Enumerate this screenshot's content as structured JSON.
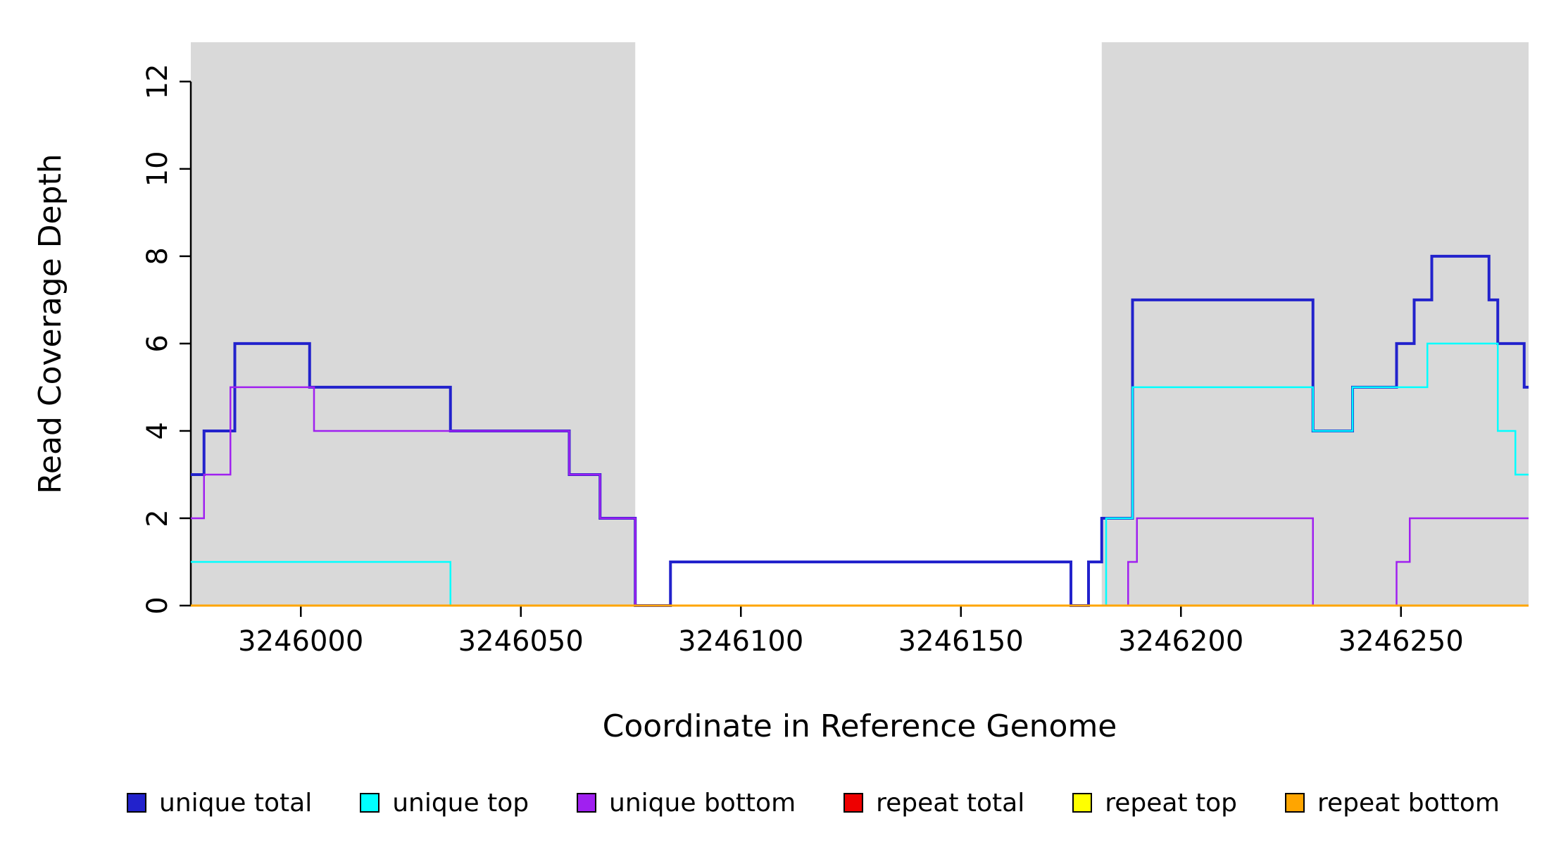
{
  "figure": {
    "background": "#FFFFFF"
  },
  "chart_data": {
    "type": "line",
    "subtype": "step-coverage",
    "title": "",
    "xlabel": "Coordinate in Reference Genome",
    "ylabel": "Read Coverage Depth",
    "xlim": [
      3245975,
      3246279
    ],
    "ylim": [
      0,
      12.9
    ],
    "x_ticks": [
      3246000,
      3246050,
      3246100,
      3246150,
      3246200,
      3246250
    ],
    "y_ticks": [
      0,
      2,
      4,
      6,
      8,
      10,
      12
    ],
    "grid": false,
    "legend_position": "bottom",
    "axis_color": "#000000",
    "shaded_regions": {
      "color": "#D9D9D9",
      "ranges": [
        [
          3245975,
          3246076
        ],
        [
          3246182,
          3246279
        ]
      ]
    },
    "series": [
      {
        "name": "unique total",
        "color": "#2222CC",
        "width": 4,
        "steps": [
          [
            3245975,
            3
          ],
          [
            3245978,
            4
          ],
          [
            3245985,
            6
          ],
          [
            3246002,
            5
          ],
          [
            3246034,
            4
          ],
          [
            3246061,
            3
          ],
          [
            3246068,
            2
          ],
          [
            3246076,
            0
          ],
          [
            3246084,
            1
          ],
          [
            3246175,
            0
          ],
          [
            3246179,
            1
          ],
          [
            3246182,
            2
          ],
          [
            3246189,
            7
          ],
          [
            3246230,
            4
          ],
          [
            3246239,
            5
          ],
          [
            3246249,
            6
          ],
          [
            3246253,
            7
          ],
          [
            3246257,
            8
          ],
          [
            3246270,
            7
          ],
          [
            3246272,
            6
          ],
          [
            3246278,
            5
          ],
          [
            3246279,
            5
          ]
        ]
      },
      {
        "name": "unique top",
        "color": "#00FFFF",
        "width": 2.5,
        "steps": [
          [
            3245975,
            1
          ],
          [
            3246034,
            0
          ],
          [
            3246183,
            2
          ],
          [
            3246189,
            5
          ],
          [
            3246230,
            4
          ],
          [
            3246239,
            5
          ],
          [
            3246256,
            6
          ],
          [
            3246272,
            4
          ],
          [
            3246276,
            3
          ],
          [
            3246279,
            3
          ]
        ]
      },
      {
        "name": "unique bottom",
        "color": "#A020F0",
        "width": 2.5,
        "steps": [
          [
            3245975,
            2
          ],
          [
            3245978,
            3
          ],
          [
            3245984,
            5
          ],
          [
            3246003,
            4
          ],
          [
            3246061,
            3
          ],
          [
            3246068,
            2
          ],
          [
            3246076,
            0
          ],
          [
            3246188,
            1
          ],
          [
            3246190,
            2
          ],
          [
            3246230,
            0
          ],
          [
            3246249,
            1
          ],
          [
            3246252,
            2
          ],
          [
            3246279,
            2
          ]
        ]
      },
      {
        "name": "repeat total",
        "color": "#EE0000",
        "width": 2.5,
        "steps": [
          [
            3245975,
            0
          ],
          [
            3246279,
            0
          ]
        ]
      },
      {
        "name": "repeat top",
        "color": "#FFFF00",
        "width": 2.5,
        "steps": [
          [
            3245975,
            0
          ],
          [
            3246279,
            0
          ]
        ]
      },
      {
        "name": "repeat bottom",
        "color": "#FFA500",
        "width": 3,
        "steps": [
          [
            3245975,
            0
          ],
          [
            3246279,
            0
          ]
        ]
      }
    ]
  }
}
